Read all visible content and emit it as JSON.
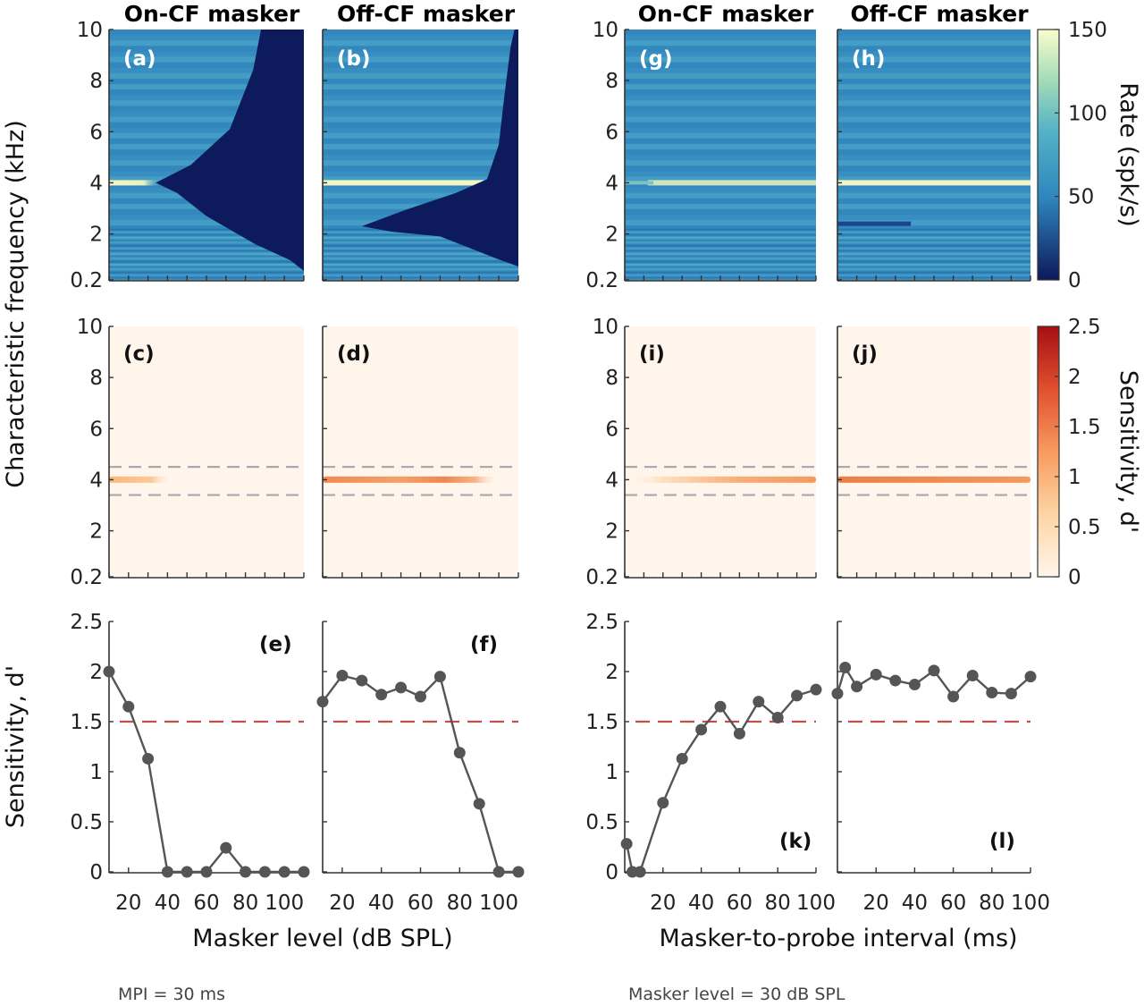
{
  "footnotes": {
    "left": "MPI = 30 ms",
    "right": "Masker level = 30 dB SPL"
  },
  "axis_labels": {
    "cf": "Characteristic frequency (kHz)",
    "rate": "Rate (spk/s)",
    "sens_cb": "Sensitivity, d'",
    "sens_y": "Sensitivity, d'",
    "masker_level": "Masker level (dB SPL)",
    "mpi": "Masker-to-probe interval (ms)"
  },
  "colors": {
    "heat_dark": "#0d1a5c",
    "heat_mid": "#2f86bd",
    "heat_high": "#fafccd",
    "sens_low": "#fff5eb",
    "sens_high": "#a50f15",
    "curve": "#555555",
    "criterion": "#c0504d",
    "band_lines": "#a8a8b4"
  },
  "chart_data": [
    {
      "id": "a",
      "type": "heatmap",
      "title": "On-CF masker",
      "panel_label": "(a)",
      "x_var": "masker level (dB SPL)",
      "ylim": [
        0.2,
        10
      ],
      "yticks": [
        "0.2",
        "2",
        "4",
        "6",
        "8",
        "10"
      ],
      "colorbar_label": "Rate (spk/s)",
      "clim": [
        0,
        150
      ]
    },
    {
      "id": "b",
      "type": "heatmap",
      "title": "Off-CF masker",
      "panel_label": "(b)",
      "x_var": "masker level (dB SPL)",
      "ylim": [
        0.2,
        10
      ],
      "yticks": [
        "0.2",
        "2",
        "4",
        "6",
        "8",
        "10"
      ],
      "colorbar_label": "Rate (spk/s)",
      "clim": [
        0,
        150
      ]
    },
    {
      "id": "g",
      "type": "heatmap",
      "title": "On-CF masker",
      "panel_label": "(g)",
      "x_var": "masker-to-probe interval (ms)",
      "ylim": [
        0.2,
        10
      ],
      "yticks": [
        "0.2",
        "2",
        "4",
        "6",
        "8",
        "10"
      ],
      "colorbar_label": "Rate (spk/s)",
      "clim": [
        0,
        150
      ]
    },
    {
      "id": "h",
      "type": "heatmap",
      "title": "Off-CF masker",
      "panel_label": "(h)",
      "x_var": "masker-to-probe interval (ms)",
      "ylim": [
        0.2,
        10
      ],
      "yticks": [
        "0.2",
        "2",
        "4",
        "6",
        "8",
        "10"
      ],
      "colorbar_label": "Rate (spk/s)",
      "clim": [
        0,
        150
      ]
    },
    {
      "id": "c",
      "type": "heatmap",
      "panel_label": "(c)",
      "x_var": "masker level (dB SPL)",
      "ylim": [
        0.2,
        10
      ],
      "yticks": [
        "0.2",
        "2",
        "4",
        "6",
        "8",
        "10"
      ],
      "colorbar_label": "Sensitivity, d'",
      "clim": [
        0,
        2.5
      ],
      "band_khz": [
        3.4,
        4.5
      ]
    },
    {
      "id": "d",
      "type": "heatmap",
      "panel_label": "(d)",
      "x_var": "masker level (dB SPL)",
      "ylim": [
        0.2,
        10
      ],
      "yticks": [
        "0.2",
        "2",
        "4",
        "6",
        "8",
        "10"
      ],
      "colorbar_label": "Sensitivity, d'",
      "clim": [
        0,
        2.5
      ],
      "band_khz": [
        3.4,
        4.5
      ]
    },
    {
      "id": "i",
      "type": "heatmap",
      "panel_label": "(i)",
      "x_var": "masker-to-probe interval (ms)",
      "ylim": [
        0.2,
        10
      ],
      "yticks": [
        "0.2",
        "2",
        "4",
        "6",
        "8",
        "10"
      ],
      "colorbar_label": "Sensitivity, d'",
      "clim": [
        0,
        2.5
      ],
      "band_khz": [
        3.4,
        4.5
      ]
    },
    {
      "id": "j",
      "type": "heatmap",
      "panel_label": "(j)",
      "x_var": "masker-to-probe interval (ms)",
      "ylim": [
        0.2,
        10
      ],
      "yticks": [
        "0.2",
        "2",
        "4",
        "6",
        "8",
        "10"
      ],
      "colorbar_label": "Sensitivity, d'",
      "clim": [
        0,
        2.5
      ],
      "band_khz": [
        3.4,
        4.5
      ]
    },
    {
      "id": "e",
      "type": "line",
      "panel_label": "(e)",
      "xlabel": "Masker level (dB SPL)",
      "ylabel": "Sensitivity, d'",
      "xlim": [
        10,
        110
      ],
      "ylim": [
        0,
        2.5
      ],
      "xticks": [
        20,
        40,
        60,
        80,
        100
      ],
      "yticks": [
        "0",
        "0.5",
        "1",
        "1.5",
        "2",
        "2.5"
      ],
      "criterion": 1.5,
      "x": [
        10,
        20,
        30,
        40,
        50,
        60,
        70,
        80,
        90,
        100,
        110
      ],
      "y": [
        2.0,
        1.65,
        1.13,
        0,
        0,
        0,
        0.24,
        0,
        0,
        0,
        0
      ]
    },
    {
      "id": "f",
      "type": "line",
      "panel_label": "(f)",
      "xlabel": "Masker level (dB SPL)",
      "ylabel": "Sensitivity, d'",
      "xlim": [
        10,
        110
      ],
      "ylim": [
        0,
        2.5
      ],
      "xticks": [
        20,
        40,
        60,
        80,
        100
      ],
      "yticks": [
        "0",
        "0.5",
        "1",
        "1.5",
        "2",
        "2.5"
      ],
      "criterion": 1.5,
      "x": [
        10,
        20,
        30,
        40,
        50,
        60,
        70,
        80,
        90,
        100,
        110
      ],
      "y": [
        1.7,
        1.96,
        1.91,
        1.77,
        1.84,
        1.75,
        1.95,
        1.19,
        0.68,
        0,
        0
      ]
    },
    {
      "id": "k",
      "type": "line",
      "panel_label": "(k)",
      "xlabel": "Masker-to-probe interval (ms)",
      "ylabel": "Sensitivity, d'",
      "xlim": [
        0,
        100
      ],
      "ylim": [
        0,
        2.5
      ],
      "xticks": [
        20,
        40,
        60,
        80,
        100
      ],
      "yticks": [
        "0",
        "0.5",
        "1",
        "1.5",
        "2",
        "2.5"
      ],
      "criterion": 1.5,
      "x": [
        1,
        4,
        8,
        20,
        30,
        40,
        50,
        60,
        70,
        80,
        90,
        100
      ],
      "y": [
        0.28,
        0,
        0,
        0.69,
        1.13,
        1.42,
        1.65,
        1.38,
        1.7,
        1.54,
        1.76,
        1.82
      ]
    },
    {
      "id": "l",
      "type": "line",
      "panel_label": "(l)",
      "xlabel": "Masker-to-probe interval (ms)",
      "ylabel": "Sensitivity, d'",
      "xlim": [
        0,
        100
      ],
      "ylim": [
        0,
        2.5
      ],
      "xticks": [
        20,
        40,
        60,
        80,
        100
      ],
      "yticks": [
        "0",
        "0.5",
        "1",
        "1.5",
        "2",
        "2.5"
      ],
      "criterion": 1.5,
      "x": [
        0,
        4,
        10,
        20,
        30,
        40,
        50,
        60,
        70,
        80,
        90,
        100
      ],
      "y": [
        1.78,
        2.04,
        1.85,
        1.97,
        1.91,
        1.87,
        2.01,
        1.75,
        1.96,
        1.79,
        1.78,
        1.95
      ]
    }
  ],
  "colorbars": {
    "rate": {
      "label": "Rate (spk/s)",
      "ticks": [
        "0",
        "50",
        "100",
        "150"
      ],
      "range": [
        0,
        150
      ]
    },
    "sens": {
      "label": "Sensitivity, d'",
      "ticks": [
        "0",
        "0.5",
        "1",
        "1.5",
        "2",
        "2.5"
      ],
      "range": [
        0,
        2.5
      ]
    }
  }
}
